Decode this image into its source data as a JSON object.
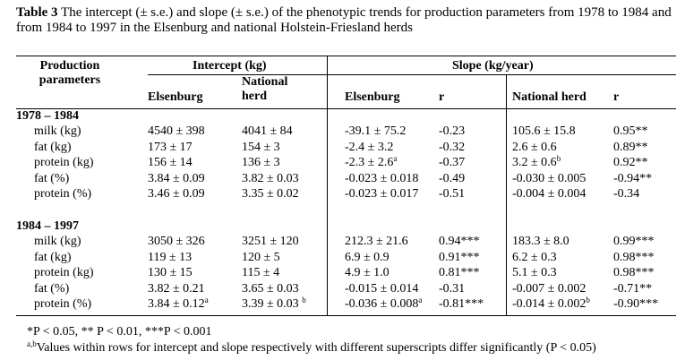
{
  "caption": {
    "label": "Table 3",
    "text": "The intercept (± s.e.) and slope (± s.e.) of the phenotypic trends for production parameters from 1978 to 1984 and from 1984 to 1997 in the Elsenburg and national Holstein-Friesland herds"
  },
  "table": {
    "group_headers": [
      "Production parameters",
      "Intercept (kg)",
      "Slope (kg/year)"
    ],
    "columns": [
      "Elsenburg",
      "National herd",
      "Elsenburg",
      "r",
      "National herd",
      "r"
    ],
    "sections": [
      {
        "title": "1978 – 1984",
        "rows": [
          [
            "milk (kg)",
            "4540 ± 398",
            "4041 ± 84",
            "-39.1 ± 75.2",
            "-0.23",
            "105.6 ± 15.8",
            "0.95**"
          ],
          [
            "fat (kg)",
            "173 ± 17",
            "154 ± 3",
            "-2.4 ± 3.2",
            "-0.32",
            "2.6 ± 0.6",
            "0.89**"
          ],
          [
            "protein (kg)",
            "156 ± 14",
            "136 ± 3",
            {
              "text": "-2.3 ± 2.6",
              "sup": "a"
            },
            "-0.37",
            {
              "text": "3.2 ± 0.6",
              "sup": "b"
            },
            "0.92**"
          ],
          [
            "fat (%)",
            "3.84 ± 0.09",
            "3.82 ± 0.03",
            "-0.023 ± 0.018",
            "-0.49",
            "-0.030 ± 0.005",
            "-0.94**"
          ],
          [
            "protein (%)",
            "3.46 ± 0.09",
            "3.35 ± 0.02",
            "-0.023 ± 0.017",
            "-0.51",
            "-0.004 ± 0.004",
            "-0.34"
          ]
        ]
      },
      {
        "title": "1984 – 1997",
        "rows": [
          [
            "milk (kg)",
            "3050 ± 326",
            "3251 ± 120",
            "212.3 ± 21.6",
            "0.94***",
            "183.3 ± 8.0",
            "0.99***"
          ],
          [
            "fat (kg)",
            "119 ± 13",
            "120 ± 5",
            "6.9 ± 0.9",
            "0.91***",
            "6.2 ± 0.3",
            "0.98***"
          ],
          [
            "protein (kg)",
            "130 ± 15",
            "115 ± 4",
            "4.9 ± 1.0",
            "0.81***",
            "5.1 ± 0.3",
            "0.98***"
          ],
          [
            "fat (%)",
            "3.82 ± 0.21",
            "3.65 ± 0.03",
            "-0.015 ± 0.014",
            "-0.31",
            "-0.007 ± 0.002",
            "-0.71**"
          ],
          [
            "protein (%)",
            {
              "text": "3.84 ± 0.12",
              "sup": "a"
            },
            {
              "text": "3.39 ± 0.03 ",
              "sup": "b"
            },
            {
              "text": "-0.036 ± 0.008",
              "sup": "a"
            },
            "-0.81***",
            {
              "text": "-0.014 ± 0.002",
              "sup": "b"
            },
            "-0.90***"
          ]
        ]
      }
    ]
  },
  "footnotes": [
    {
      "text": "*P < 0.05, ** P < 0.01, ***P < 0.001"
    },
    {
      "sup": "a,b",
      "text": "Values within rows for intercept and slope respectively with different superscripts differ significantly (P < 0.05)"
    }
  ]
}
